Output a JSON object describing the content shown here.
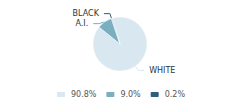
{
  "chart_data": {
    "type": "pie",
    "labels": [
      "WHITE",
      "A.I.",
      "BLACK"
    ],
    "values": [
      90.8,
      9.0,
      0.2
    ],
    "legend_labels": [
      "90.8%",
      "9.0%",
      "0.2%"
    ],
    "colors": [
      "#d9e8f0",
      "#7aafc0",
      "#2d5f7a"
    ],
    "legend": "bottom"
  }
}
